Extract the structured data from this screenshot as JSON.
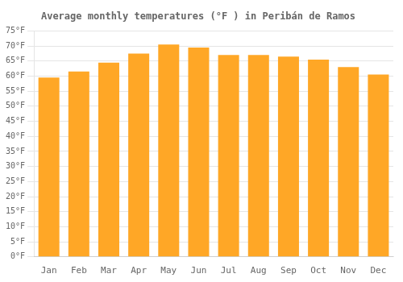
{
  "chart_data": {
    "type": "bar",
    "title": "Average monthly temperatures (°F ) in Peribán de Ramos",
    "categories": [
      "Jan",
      "Feb",
      "Mar",
      "Apr",
      "May",
      "Jun",
      "Jul",
      "Aug",
      "Sep",
      "Oct",
      "Nov",
      "Dec"
    ],
    "values": [
      59.5,
      61.5,
      64.5,
      67.5,
      70.5,
      69.5,
      67.0,
      67.0,
      66.5,
      65.5,
      63.0,
      60.5
    ],
    "color": "#FFA726",
    "ylim": [
      0,
      75
    ],
    "yticks": [
      {
        "value": 0,
        "label": "0°F"
      },
      {
        "value": 5,
        "label": "5°F"
      },
      {
        "value": 10,
        "label": "10°F"
      },
      {
        "value": 15,
        "label": "15°F"
      },
      {
        "value": 20,
        "label": "20°F"
      },
      {
        "value": 25,
        "label": "25°F"
      },
      {
        "value": 30,
        "label": "30°F"
      },
      {
        "value": 35,
        "label": "35°F"
      },
      {
        "value": 40,
        "label": "40°F"
      },
      {
        "value": 45,
        "label": "45°F"
      },
      {
        "value": 50,
        "label": "50°F"
      },
      {
        "value": 55,
        "label": "55°F"
      },
      {
        "value": 60,
        "label": "60°F"
      },
      {
        "value": 65,
        "label": "65°F"
      },
      {
        "value": 70,
        "label": "70°F"
      },
      {
        "value": 75,
        "label": "75°F"
      }
    ],
    "grid": true
  }
}
